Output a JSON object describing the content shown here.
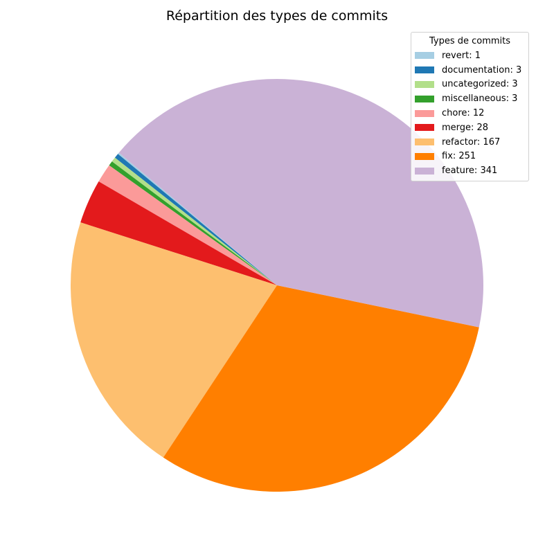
{
  "chart_data": {
    "type": "pie",
    "title": "Répartition des types de commits",
    "legend_title": "Types de commits",
    "legend_placement": "top-right",
    "start_angle_deg": 140,
    "direction": "counterclockwise",
    "slices": [
      {
        "name": "revert",
        "value": 1,
        "color": "#a6cee3",
        "legend": "revert: 1"
      },
      {
        "name": "documentation",
        "value": 3,
        "color": "#1f78b4",
        "legend": "documentation: 3"
      },
      {
        "name": "uncategorized",
        "value": 3,
        "color": "#b2df8a",
        "legend": "uncategorized: 3"
      },
      {
        "name": "miscellaneous",
        "value": 3,
        "color": "#33a02c",
        "legend": "miscellaneous: 3"
      },
      {
        "name": "chore",
        "value": 12,
        "color": "#fb9a99",
        "legend": "chore: 12"
      },
      {
        "name": "merge",
        "value": 28,
        "color": "#e31a1c",
        "legend": "merge: 28"
      },
      {
        "name": "refactor",
        "value": 167,
        "color": "#fdbf6f",
        "legend": "refactor: 167"
      },
      {
        "name": "fix",
        "value": 251,
        "color": "#ff7f00",
        "legend": "fix: 251"
      },
      {
        "name": "feature",
        "value": 341,
        "color": "#cab2d6",
        "legend": "feature: 341"
      }
    ]
  }
}
